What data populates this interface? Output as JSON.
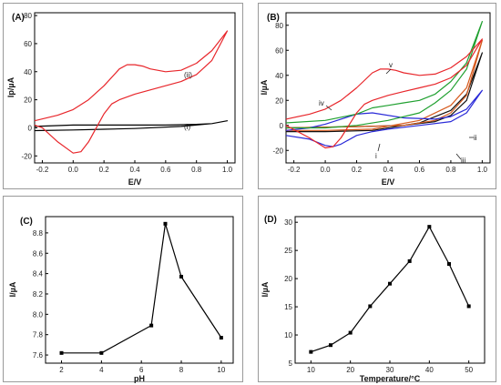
{
  "chart_data": [
    {
      "panel": "(A)",
      "type": "line",
      "xlabel": "E/V",
      "ylabel": "Ip/µA",
      "xlim": [
        -0.25,
        1.05
      ],
      "ylim": [
        -25,
        82
      ],
      "xticks": [
        "-0.2",
        "0.0",
        "0.2",
        "0.4",
        "0.6",
        "0.8",
        "1.0"
      ],
      "xtick_values": [
        -0.2,
        0.0,
        0.2,
        0.4,
        0.6,
        0.8,
        1.0
      ],
      "yticks": [
        "-20",
        "0",
        "20",
        "40",
        "60",
        "80"
      ],
      "ytick_values": [
        -20,
        0,
        20,
        40,
        60,
        80
      ],
      "annotations": [
        "(i)",
        "(ii)"
      ],
      "series": [
        {
          "name": "(i)",
          "color": "#000000",
          "x": [
            -0.25,
            0.0,
            0.3,
            0.6,
            0.8,
            0.9,
            1.0,
            0.9,
            0.7,
            0.4,
            0.2,
            0.0,
            -0.25
          ],
          "y": [
            1,
            2,
            2,
            2,
            2.5,
            3,
            5,
            3,
            1,
            -0.5,
            -1,
            -1.5,
            -2
          ]
        },
        {
          "name": "(ii)",
          "color": "#e8262b",
          "x": [
            -0.25,
            -0.1,
            0.0,
            0.1,
            0.2,
            0.3,
            0.35,
            0.4,
            0.45,
            0.5,
            0.6,
            0.7,
            0.8,
            0.9,
            1.0,
            0.9,
            0.8,
            0.7,
            0.6,
            0.5,
            0.4,
            0.3,
            0.25,
            0.2,
            0.15,
            0.1,
            0.05,
            0.0,
            -0.1,
            -0.2,
            -0.25
          ],
          "y": [
            5,
            9,
            13,
            20,
            30,
            42,
            45,
            45,
            44,
            42,
            40,
            41,
            46,
            55,
            69,
            48,
            38,
            33,
            30,
            27,
            24,
            20,
            17,
            10,
            0,
            -10,
            -17,
            -18,
            -10,
            0,
            2
          ]
        }
      ]
    },
    {
      "panel": "(B)",
      "type": "line",
      "xlabel": "E/V",
      "ylabel": "I/µA",
      "xlim": [
        -0.25,
        1.05
      ],
      "ylim": [
        -30,
        90
      ],
      "xticks": [
        "-0.2",
        "0.0",
        "0.2",
        "0.4",
        "0.6",
        "0.8",
        "1.0"
      ],
      "xtick_values": [
        -0.2,
        0.0,
        0.2,
        0.4,
        0.6,
        0.8,
        1.0
      ],
      "yticks": [
        "-20",
        "0",
        "20",
        "40",
        "60",
        "80"
      ],
      "ytick_values": [
        -20,
        0,
        20,
        40,
        60,
        80
      ],
      "annotations": [
        "i",
        "ii",
        "iii",
        "iv",
        "v"
      ],
      "series": [
        {
          "name": "i",
          "color": "#111111",
          "x": [
            -0.25,
            0.2,
            0.5,
            0.7,
            0.8,
            0.9,
            1.0,
            0.9,
            0.8,
            0.6,
            0.3,
            0.0,
            -0.25
          ],
          "y": [
            -2,
            -1,
            0,
            3,
            8,
            20,
            58,
            25,
            12,
            2,
            -4,
            -5,
            -5
          ]
        },
        {
          "name": "ii",
          "color": "#d65a1e",
          "x": [
            -0.25,
            0.2,
            0.5,
            0.7,
            0.8,
            0.9,
            1.0,
            0.9,
            0.8,
            0.6,
            0.3,
            0.0,
            -0.25
          ],
          "y": [
            -2,
            -1,
            0,
            4,
            10,
            24,
            68,
            30,
            16,
            4,
            -3,
            -4,
            -4
          ]
        },
        {
          "name": "iii",
          "color": "#2a2ad8",
          "x": [
            -0.25,
            -0.1,
            0.0,
            0.1,
            0.2,
            0.3,
            0.5,
            0.7,
            0.8,
            0.9,
            1.0,
            0.9,
            0.8,
            0.6,
            0.4,
            0.3,
            0.2,
            0.1,
            0.05,
            0.0,
            -0.1,
            -0.25
          ],
          "y": [
            -4,
            -2,
            1,
            5,
            9,
            10,
            6,
            5,
            7,
            13,
            28,
            10,
            3,
            0,
            -3,
            -5,
            -8,
            -15,
            -17,
            -16,
            -11,
            -8
          ]
        },
        {
          "name": "iv",
          "color": "#20a030",
          "x": [
            -0.25,
            0.0,
            0.2,
            0.3,
            0.4,
            0.5,
            0.6,
            0.7,
            0.8,
            0.9,
            1.0,
            0.9,
            0.8,
            0.7,
            0.6,
            0.4,
            0.2,
            0.0,
            -0.25
          ],
          "y": [
            2,
            4,
            9,
            14,
            16,
            18,
            20,
            25,
            35,
            50,
            83,
            45,
            28,
            18,
            10,
            4,
            0,
            -2,
            -2
          ]
        },
        {
          "name": "v",
          "color": "#e8262b",
          "x": [
            -0.25,
            -0.1,
            0.0,
            0.1,
            0.2,
            0.3,
            0.35,
            0.4,
            0.45,
            0.5,
            0.6,
            0.7,
            0.8,
            0.9,
            1.0,
            0.9,
            0.8,
            0.7,
            0.6,
            0.5,
            0.4,
            0.3,
            0.25,
            0.2,
            0.15,
            0.1,
            0.05,
            0.0,
            -0.1,
            -0.25
          ],
          "y": [
            5,
            9,
            13,
            20,
            30,
            42,
            45,
            45,
            44,
            42,
            40,
            41,
            46,
            55,
            69,
            48,
            38,
            33,
            30,
            27,
            24,
            20,
            17,
            10,
            0,
            -10,
            -17,
            -18,
            -10,
            0
          ]
        }
      ]
    },
    {
      "panel": "(C)",
      "type": "line",
      "xlabel": "pH",
      "ylabel": "I/µA",
      "xlim": [
        1.2,
        10.6
      ],
      "ylim": [
        7.52,
        8.96
      ],
      "xticks": [
        "2",
        "4",
        "6",
        "8",
        "10"
      ],
      "xtick_values": [
        2,
        4,
        6,
        8,
        10
      ],
      "yticks": [
        "7.6",
        "7.8",
        "8.0",
        "8.2",
        "8.4",
        "8.6",
        "8.8"
      ],
      "ytick_values": [
        7.6,
        7.8,
        8.0,
        8.2,
        8.4,
        8.6,
        8.8
      ],
      "series": [
        {
          "name": "",
          "color": "#000000",
          "x": [
            2,
            4,
            6.5,
            7.2,
            8,
            10
          ],
          "y": [
            7.62,
            7.62,
            7.89,
            8.89,
            8.37,
            7.77
          ]
        }
      ]
    },
    {
      "panel": "(D)",
      "type": "line",
      "xlabel": "Temperature/°C",
      "ylabel": "I/µA",
      "xlim": [
        6,
        54
      ],
      "ylim": [
        5,
        31
      ],
      "xticks": [
        "10",
        "20",
        "30",
        "40",
        "50"
      ],
      "xtick_values": [
        10,
        20,
        30,
        40,
        50
      ],
      "yticks": [
        "5",
        "10",
        "15",
        "20",
        "25",
        "30"
      ],
      "ytick_values": [
        5,
        10,
        15,
        20,
        25,
        30
      ],
      "series": [
        {
          "name": "",
          "color": "#000000",
          "x": [
            10,
            15,
            20,
            25,
            30,
            35,
            40,
            45,
            50
          ],
          "y": [
            7.0,
            8.2,
            10.4,
            15.1,
            19.1,
            23.1,
            29.2,
            22.6,
            15.1
          ]
        }
      ]
    }
  ]
}
